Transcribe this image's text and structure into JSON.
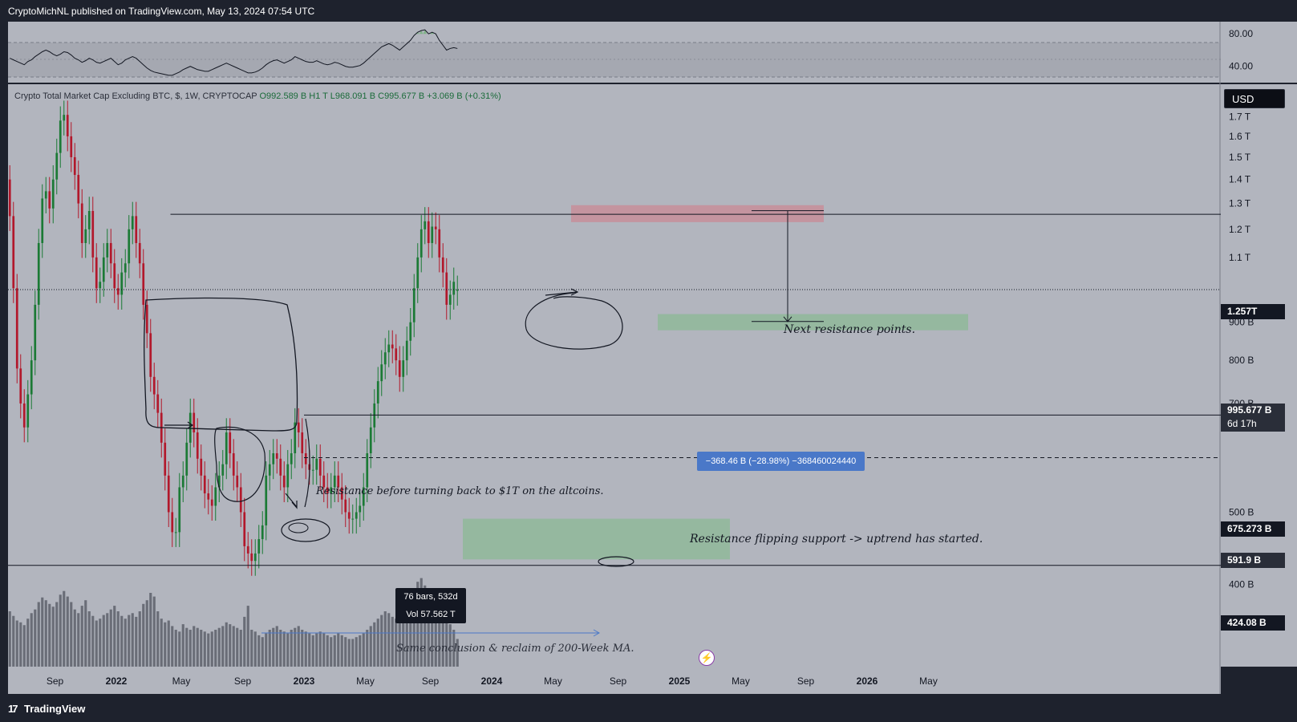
{
  "header": {
    "published_text": "CryptoMichNL published on TradingView.com, May 13, 2024 07:54 UTC"
  },
  "footer": {
    "brand": "TradingView",
    "brand_mark": "17"
  },
  "currency": "USD",
  "series_header": {
    "title": "Crypto Total Market Cap Excluding BTC, $, 1W, CRYPTOCAP",
    "open": "O992.589 B",
    "high": "H1 T",
    "low": "L968.091 B",
    "close": "C995.677 B",
    "change": "+3.069 B (+0.31%)"
  },
  "colors": {
    "background": "#b2b5be",
    "up": "#1b7a35",
    "down": "#b2182b",
    "resistance_zone": "#c98a94",
    "support_zone": "#8fb89a",
    "volume": "#5d606b",
    "measure": "#4a78c8"
  },
  "annotations": {
    "next_resistance": "Next resistance points.",
    "resistance_turn": "Resistance before turning back to $1T on the altcoins.",
    "flip_support": "Resistance flipping support -> uptrend has started.",
    "same_conclusion": "Same conclusion & reclaim of 200-Week MA."
  },
  "measure_label": "−368.46 B (−28.98%) −368460024440",
  "range_label": {
    "bars": "76 bars, 532d",
    "vol": "Vol 57.562 T"
  },
  "price_tags": {
    "resistance_high": "1.257T",
    "current_price": "995.677 B",
    "countdown": "6d 17h",
    "flip_level": "675.273 B",
    "dashed_level": "591.9 B",
    "low_level": "424.08 B"
  },
  "chart_data": {
    "type": "candlestick",
    "title": "Crypto Total Market Cap Excluding BTC, $, 1W, CRYPTOCAP",
    "y_ticks": [
      "1.7 T",
      "1.6 T",
      "1.5 T",
      "1.4 T",
      "1.3 T",
      "1.2 T",
      "1.1 T",
      "900 B",
      "800 B",
      "700 B",
      "500 B",
      "400 B"
    ],
    "y_tick_values": [
      1700,
      1600,
      1500,
      1400,
      1300,
      1200,
      1100,
      900,
      800,
      700,
      500,
      400
    ],
    "x_ticks": [
      "Sep",
      "2022",
      "May",
      "Sep",
      "2023",
      "May",
      "Sep",
      "2024",
      "May",
      "Sep",
      "2025",
      "May",
      "Sep",
      "2026",
      "May"
    ],
    "rsi_ticks": [
      "80.00",
      "40.00"
    ],
    "rsi_tick_values": [
      80,
      40
    ],
    "ylim_billions": [
      310,
      1880
    ],
    "xlim_weeks": [
      0,
      336
    ],
    "rsi_ylim": [
      20,
      95
    ],
    "close_billions": [
      1250,
      1000,
      780,
      700,
      650,
      720,
      800,
      950,
      1150,
      1320,
      1350,
      1280,
      1400,
      1520,
      1680,
      1710,
      1600,
      1500,
      1420,
      1300,
      1150,
      1200,
      1270,
      1100,
      1000,
      1020,
      1100,
      1150,
      1080,
      1000,
      980,
      1050,
      1080,
      1200,
      1250,
      1150,
      1080,
      950,
      870,
      760,
      720,
      680,
      620,
      560,
      500,
      470,
      470,
      540,
      560,
      620,
      680,
      640,
      590,
      560,
      530,
      520,
      510,
      540,
      560,
      580,
      640,
      600,
      560,
      540,
      500,
      450,
      440,
      430,
      440,
      460,
      480,
      560,
      580,
      600,
      590,
      560,
      540,
      580,
      600,
      660,
      640,
      600,
      580,
      570,
      570,
      590,
      560,
      540,
      530,
      540,
      560,
      540,
      520,
      500,
      490,
      490,
      500,
      510,
      540,
      600,
      650,
      700,
      750,
      790,
      820,
      840,
      830,
      800,
      760,
      800,
      850,
      900,
      1000,
      1100,
      1200,
      1230,
      1150,
      1210,
      1200,
      1100,
      1050,
      950,
      980,
      1020,
      995
    ],
    "open_billions": [
      1400,
      1250,
      1000,
      780,
      700,
      650,
      720,
      800,
      950,
      1150,
      1320,
      1350,
      1280,
      1400,
      1520,
      1680,
      1710,
      1600,
      1500,
      1420,
      1300,
      1150,
      1200,
      1270,
      1100,
      1000,
      1020,
      1100,
      1150,
      1080,
      1000,
      980,
      1050,
      1080,
      1200,
      1250,
      1150,
      1080,
      950,
      870,
      760,
      720,
      680,
      620,
      560,
      500,
      470,
      470,
      540,
      560,
      620,
      680,
      640,
      590,
      560,
      530,
      520,
      510,
      540,
      560,
      580,
      640,
      600,
      560,
      540,
      500,
      450,
      440,
      430,
      440,
      460,
      480,
      560,
      580,
      600,
      590,
      560,
      540,
      580,
      600,
      660,
      640,
      600,
      580,
      570,
      570,
      590,
      560,
      540,
      530,
      540,
      560,
      540,
      520,
      500,
      490,
      490,
      500,
      510,
      540,
      600,
      650,
      700,
      750,
      790,
      820,
      840,
      830,
      800,
      760,
      800,
      850,
      900,
      1000,
      1100,
      1200,
      1230,
      1150,
      1210,
      1200,
      1100,
      1050,
      950,
      980,
      992
    ],
    "current_price_billions": 995.677,
    "levels_billions": {
      "resistance_high": 1257,
      "flip_level": 675.273,
      "dashed_level": 591.9,
      "low_level": 424.08
    },
    "zones": {
      "resistance_zone_billions": [
        1227,
        1293
      ],
      "support_zone_billions": [
        878,
        923
      ],
      "accumulation_zone_billions": [
        432,
        490
      ]
    },
    "measure": {
      "from_billions": 1271,
      "to_billions": 902,
      "change": "−368.46 B (−28.98%)"
    },
    "rsi": [
      50,
      48,
      46,
      44,
      42,
      46,
      48,
      52,
      55,
      58,
      60,
      58,
      55,
      53,
      55,
      58,
      57,
      54,
      50,
      48,
      45,
      47,
      50,
      48,
      45,
      44,
      46,
      48,
      50,
      46,
      42,
      44,
      48,
      50,
      52,
      50,
      46,
      42,
      38,
      35,
      33,
      32,
      31,
      30,
      29,
      29,
      31,
      33,
      36,
      38,
      40,
      38,
      36,
      35,
      34,
      34,
      36,
      38,
      40,
      42,
      44,
      42,
      40,
      38,
      36,
      34,
      32,
      32,
      33,
      35,
      38,
      42,
      45,
      47,
      48,
      46,
      44,
      46,
      48,
      52,
      50,
      48,
      46,
      45,
      45,
      47,
      45,
      43,
      42,
      43,
      45,
      44,
      42,
      40,
      39,
      39,
      40,
      41,
      44,
      48,
      52,
      56,
      60,
      64,
      66,
      68,
      66,
      63,
      60,
      64,
      68,
      72,
      78,
      82,
      84,
      85,
      80,
      82,
      80,
      72,
      66,
      60,
      62,
      63,
      62
    ],
    "volume": [
      60,
      55,
      50,
      48,
      45,
      52,
      58,
      62,
      70,
      75,
      72,
      68,
      65,
      70,
      78,
      82,
      76,
      70,
      62,
      58,
      66,
      72,
      60,
      55,
      50,
      52,
      56,
      58,
      62,
      66,
      60,
      55,
      52,
      56,
      58,
      54,
      60,
      68,
      72,
      80,
      76,
      60,
      52,
      48,
      50,
      44,
      40,
      38,
      46,
      42,
      40,
      44,
      42,
      40,
      38,
      36,
      38,
      40,
      42,
      44,
      48,
      46,
      44,
      42,
      40,
      54,
      66,
      40,
      38,
      34,
      32,
      36,
      40,
      42,
      44,
      40,
      38,
      36,
      40,
      42,
      44,
      40,
      38,
      36,
      34,
      36,
      38,
      36,
      34,
      32,
      34,
      36,
      34,
      32,
      30,
      30,
      32,
      34,
      36,
      40,
      44,
      48,
      52,
      56,
      60,
      58,
      54,
      52,
      50,
      56,
      62,
      70,
      80,
      92,
      96,
      88,
      80,
      84,
      72,
      66,
      60,
      52,
      46,
      40,
      30
    ],
    "grid": false,
    "log_scale": true
  },
  "axes_labels": {
    "rsi": [
      "80.00",
      "40.00"
    ]
  }
}
